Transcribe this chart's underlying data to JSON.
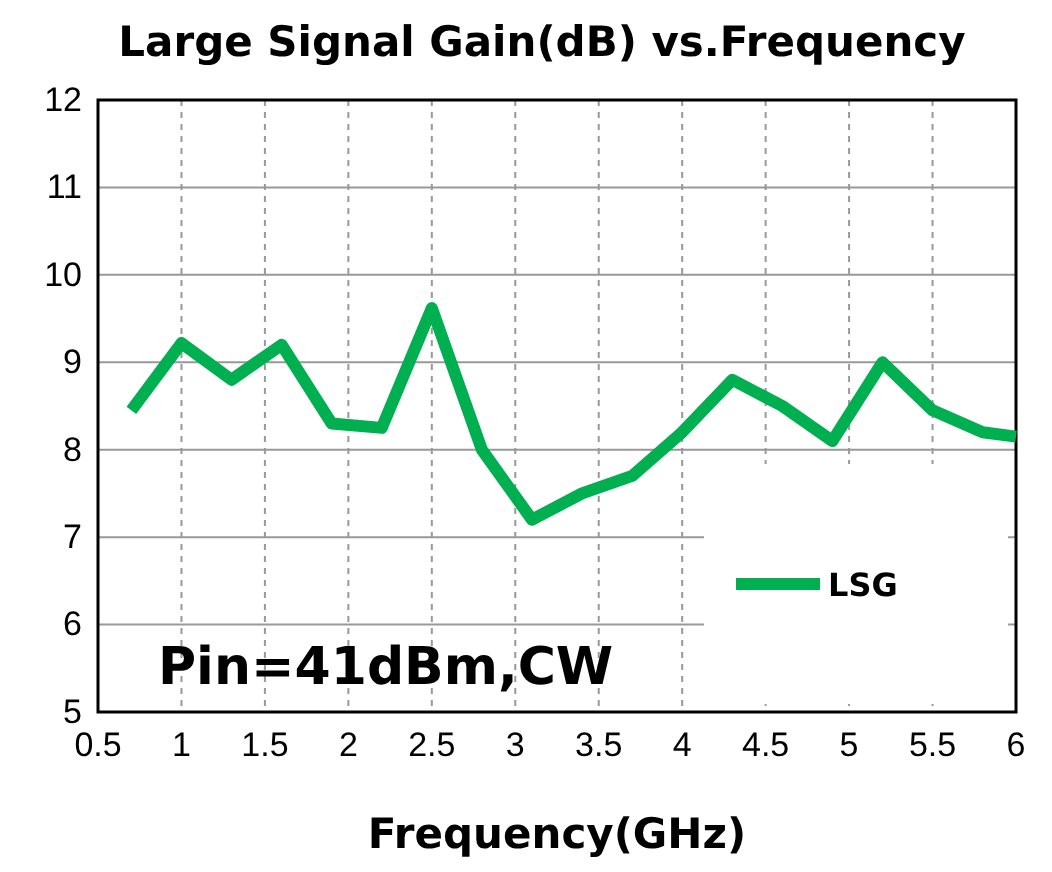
{
  "chart_data": {
    "type": "line",
    "title": "Large Signal Gain(dB) vs.Frequency",
    "xlabel": "Frequency(GHz)",
    "x": [
      0.7,
      1.0,
      1.3,
      1.6,
      1.9,
      2.2,
      2.5,
      2.8,
      3.1,
      3.4,
      3.7,
      4.0,
      4.3,
      4.6,
      4.9,
      5.2,
      5.5,
      5.8,
      6.0
    ],
    "series": [
      {
        "name": "LSG",
        "color": "#00b050",
        "values": [
          8.45,
          9.22,
          8.8,
          9.2,
          8.3,
          8.25,
          9.62,
          8.0,
          7.2,
          7.5,
          7.7,
          8.2,
          8.8,
          8.5,
          8.1,
          9.0,
          8.45,
          8.2,
          8.15
        ]
      }
    ],
    "xlim": [
      0.5,
      6
    ],
    "xticks": [
      0.5,
      1,
      1.5,
      2,
      2.5,
      3,
      3.5,
      4,
      4.5,
      5,
      5.5,
      6
    ],
    "ylim": [
      5,
      12
    ],
    "yticks": [
      5,
      6,
      7,
      8,
      9,
      10,
      11,
      12
    ],
    "grid": true,
    "legend": "bottom right",
    "marker": "none",
    "line_style": "solid",
    "annotations": [
      "Pin=41dBm,CW"
    ]
  }
}
